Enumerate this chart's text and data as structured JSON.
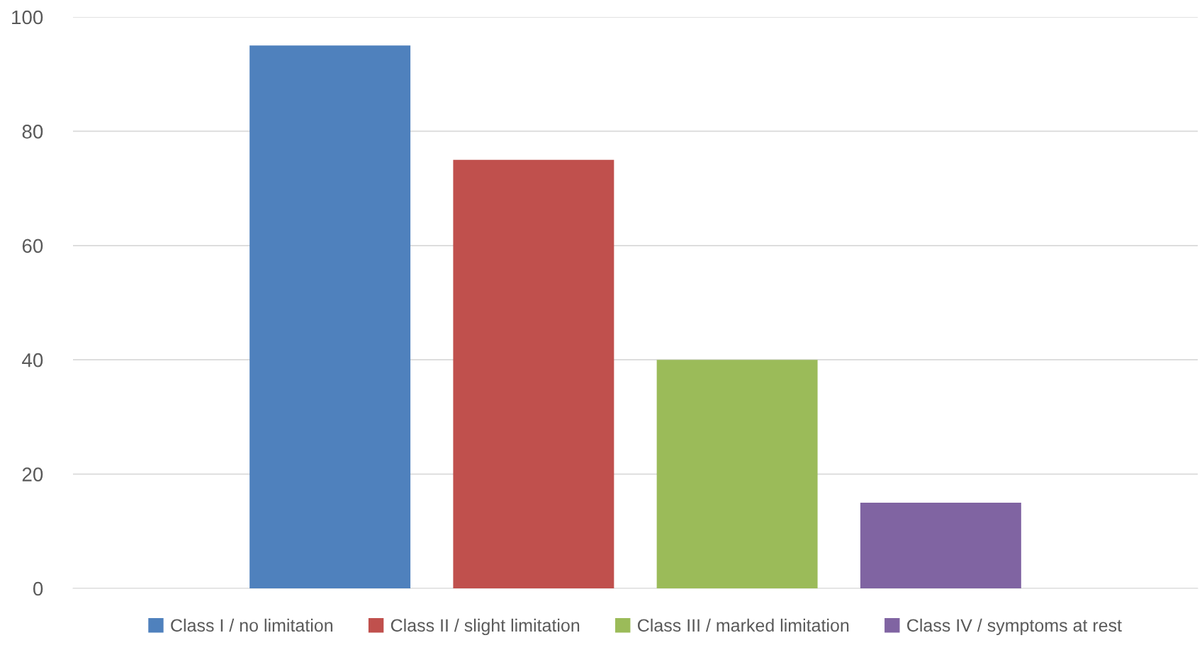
{
  "chart_data": {
    "type": "bar",
    "categories": [
      null
    ],
    "series": [
      {
        "name": "Class I / no limitation",
        "color": "#4f81bd",
        "values": [
          95
        ]
      },
      {
        "name": "Class II / slight limitation",
        "color": "#c0504d",
        "values": [
          75
        ]
      },
      {
        "name": "Class III / marked limitation",
        "color": "#9bbb59",
        "values": [
          40
        ]
      },
      {
        "name": "Class IV / symptoms at rest",
        "color": "#8064a2",
        "values": [
          15
        ]
      }
    ],
    "ylim": [
      0,
      100
    ],
    "yticks": [
      0,
      20,
      40,
      60,
      80,
      100
    ],
    "grid": "y",
    "legend": "bottom",
    "tick_labels": "y"
  }
}
